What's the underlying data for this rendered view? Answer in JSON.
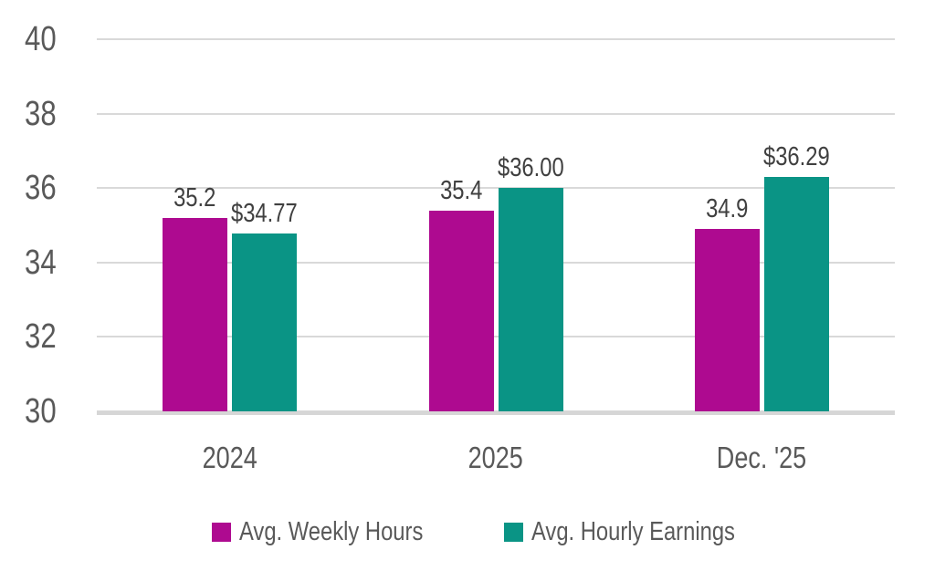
{
  "chart_data": {
    "type": "bar",
    "categories": [
      "2024",
      "2025",
      "Dec. '25"
    ],
    "series": [
      {
        "name": "Avg. Weekly Hours",
        "color": "#ae0a90",
        "values": [
          35.2,
          35.4,
          34.9
        ],
        "labels": [
          "35.2",
          "35.4",
          "34.9"
        ]
      },
      {
        "name": "Avg. Hourly Earnings",
        "color": "#0a9485",
        "values": [
          34.77,
          36.0,
          36.29
        ],
        "labels": [
          "$34.77",
          "$36.00",
          "$36.29"
        ]
      }
    ],
    "yticks": [
      30,
      32,
      34,
      36,
      38,
      40
    ],
    "ylim": [
      30,
      40
    ],
    "grid": true,
    "legend_position": "bottom",
    "title": ""
  },
  "colors": {
    "background": "#ffffff",
    "text": "#595959",
    "value_label_text": "#404040",
    "gridline": "#d9d9d9",
    "axis_line": "#d6d6d6"
  }
}
